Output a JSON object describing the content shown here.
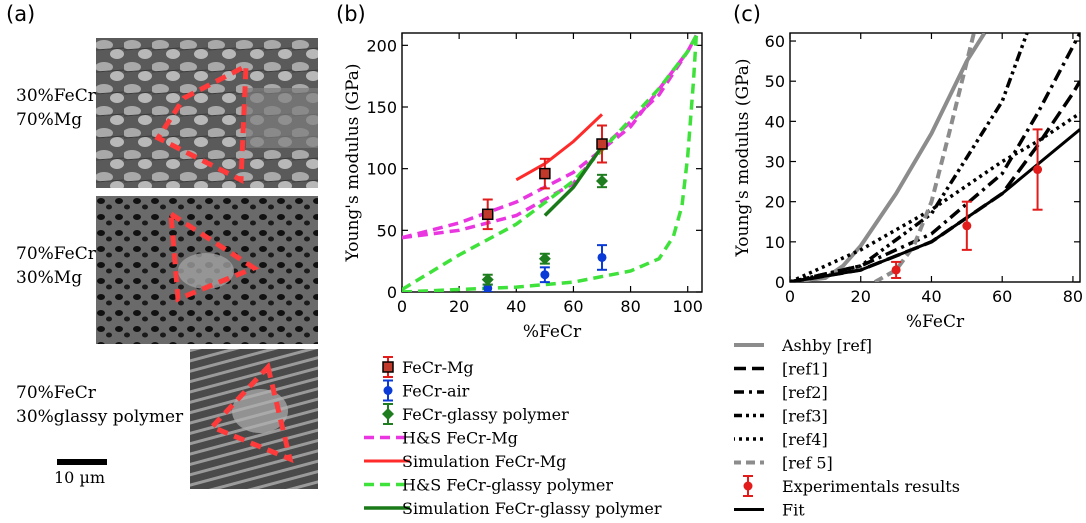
{
  "panel_a": {
    "label": "(a)",
    "samples": [
      {
        "line1": "30%FeCr",
        "line2": "70%Mg"
      },
      {
        "line1": "70%FeCr",
        "line2": "30%Mg"
      },
      {
        "line1": "70%FeCr",
        "line2": "30%glassy polymer"
      }
    ],
    "scale_bar": "10 µm"
  },
  "panel_b": {
    "label": "(b)"
  },
  "panel_c": {
    "label": "(c)"
  },
  "colors": {
    "fecr_mg": "#c0392b",
    "fecr_air": "#0b3bd6",
    "fecr_glassy": "#1e7d1e",
    "hs_mg": "#e936e0",
    "sim_mg": "#ff2a2a",
    "hs_glassy": "#3fe23a",
    "sim_glassy": "#1a7a1a",
    "triangle": "#ff3a3a",
    "ashby": "#8c8c8c",
    "exp": "#e21b1b"
  },
  "chart_data": [
    {
      "type": "line",
      "xlabel": "%FeCr",
      "ylabel": "Young's modulus (GPa)",
      "xlim": [
        0,
        105
      ],
      "ylim": [
        0,
        210
      ],
      "xticks": [
        0,
        20,
        40,
        60,
        80,
        100
      ],
      "yticks": [
        0,
        50,
        100,
        150,
        200
      ],
      "legend_position": "below",
      "series": [
        {
          "name": "FeCr-Mg",
          "kind": "points",
          "marker": "square",
          "x": [
            30,
            50,
            70
          ],
          "y": [
            63,
            96,
            120
          ],
          "err": [
            12,
            12,
            15
          ]
        },
        {
          "name": "FeCr-air",
          "kind": "points",
          "marker": "circle",
          "x": [
            30,
            50,
            70
          ],
          "y": [
            3,
            14,
            28
          ],
          "err": [
            3,
            6,
            10
          ]
        },
        {
          "name": "FeCr-glassy polymer",
          "kind": "points",
          "marker": "diamond",
          "x": [
            30,
            50,
            70
          ],
          "y": [
            10,
            27,
            90
          ],
          "err": [
            4,
            4,
            5
          ]
        },
        {
          "name": "H&S  FeCr-Mg",
          "kind": "dashed",
          "x": [
            0,
            20,
            40,
            60,
            80,
            100,
            103
          ],
          "y": [
            44,
            56,
            73,
            97,
            134,
            195,
            208
          ]
        },
        {
          "name": "H&S  FeCr-Mg",
          "kind": "dashed",
          "x": [
            0,
            20,
            40,
            60,
            70,
            80,
            90,
            100,
            103
          ],
          "y": [
            44,
            50,
            62,
            88,
            117,
            138,
            160,
            195,
            208
          ]
        },
        {
          "name": "Simulation FeCr-Mg",
          "kind": "solid",
          "x": [
            40,
            50,
            60,
            70
          ],
          "y": [
            91,
            104,
            122,
            144
          ]
        },
        {
          "name": "H&S FeCr-glassy polymer",
          "kind": "dashed",
          "x": [
            0,
            20,
            40,
            60,
            70,
            80,
            90,
            100,
            103
          ],
          "y": [
            2,
            30,
            55,
            90,
            115,
            140,
            165,
            195,
            208
          ]
        },
        {
          "name": "H&S FeCr-glassy polymer",
          "kind": "dashed",
          "x": [
            0,
            20,
            40,
            60,
            80,
            90,
            95,
            98,
            100,
            102,
            103
          ],
          "y": [
            0,
            2,
            4,
            8,
            17,
            27,
            45,
            70,
            110,
            170,
            208
          ]
        },
        {
          "name": "Simulation FeCr-glassy polymer",
          "kind": "solid",
          "x": [
            50,
            60,
            70
          ],
          "y": [
            62,
            85,
            118
          ]
        }
      ]
    },
    {
      "type": "line",
      "xlabel": "%FeCr",
      "ylabel": "Young's modulus (GPa)",
      "xlim": [
        0,
        82
      ],
      "ylim": [
        0,
        62
      ],
      "xticks": [
        0,
        20,
        40,
        60,
        80
      ],
      "yticks": [
        0,
        10,
        20,
        30,
        40,
        50,
        60
      ],
      "legend_position": "below",
      "series": [
        {
          "name": "Ashby [ref]",
          "kind": "solid-gray",
          "x": [
            0,
            10,
            15,
            20,
            30,
            40,
            50,
            55
          ],
          "y": [
            0,
            1,
            4,
            9,
            22,
            37,
            55,
            62
          ]
        },
        {
          "name": "[ref1]",
          "kind": "longdash",
          "x": [
            0,
            20,
            40,
            60,
            70,
            80,
            82
          ],
          "y": [
            0,
            3,
            10,
            22,
            34,
            47,
            50
          ]
        },
        {
          "name": "[ref2]",
          "kind": "dashdot",
          "x": [
            0,
            20,
            40,
            60,
            70,
            82
          ],
          "y": [
            0,
            4,
            12,
            27,
            42,
            62
          ]
        },
        {
          "name": "[ref3]",
          "kind": "dashdotdot",
          "x": [
            0,
            20,
            40,
            60,
            67
          ],
          "y": [
            0,
            4,
            17,
            45,
            62
          ]
        },
        {
          "name": "[ref4]",
          "kind": "dotted",
          "x": [
            0,
            20,
            40,
            60,
            70,
            82
          ],
          "y": [
            0,
            8,
            18,
            30,
            35,
            42
          ]
        },
        {
          "name": "[ref 5]",
          "kind": "dashed-gray",
          "x": [
            24,
            30,
            35,
            40,
            45,
            52
          ],
          "y": [
            0,
            3,
            9,
            20,
            37,
            62
          ]
        },
        {
          "name": "Experimentals results",
          "kind": "points",
          "x": [
            30,
            50,
            70
          ],
          "y": [
            3,
            14,
            28
          ],
          "err": [
            2,
            6,
            10
          ]
        },
        {
          "name": "Fit",
          "kind": "solid-black",
          "x": [
            0,
            20,
            40,
            60,
            82
          ],
          "y": [
            0,
            3,
            10,
            22,
            38
          ]
        }
      ]
    }
  ]
}
